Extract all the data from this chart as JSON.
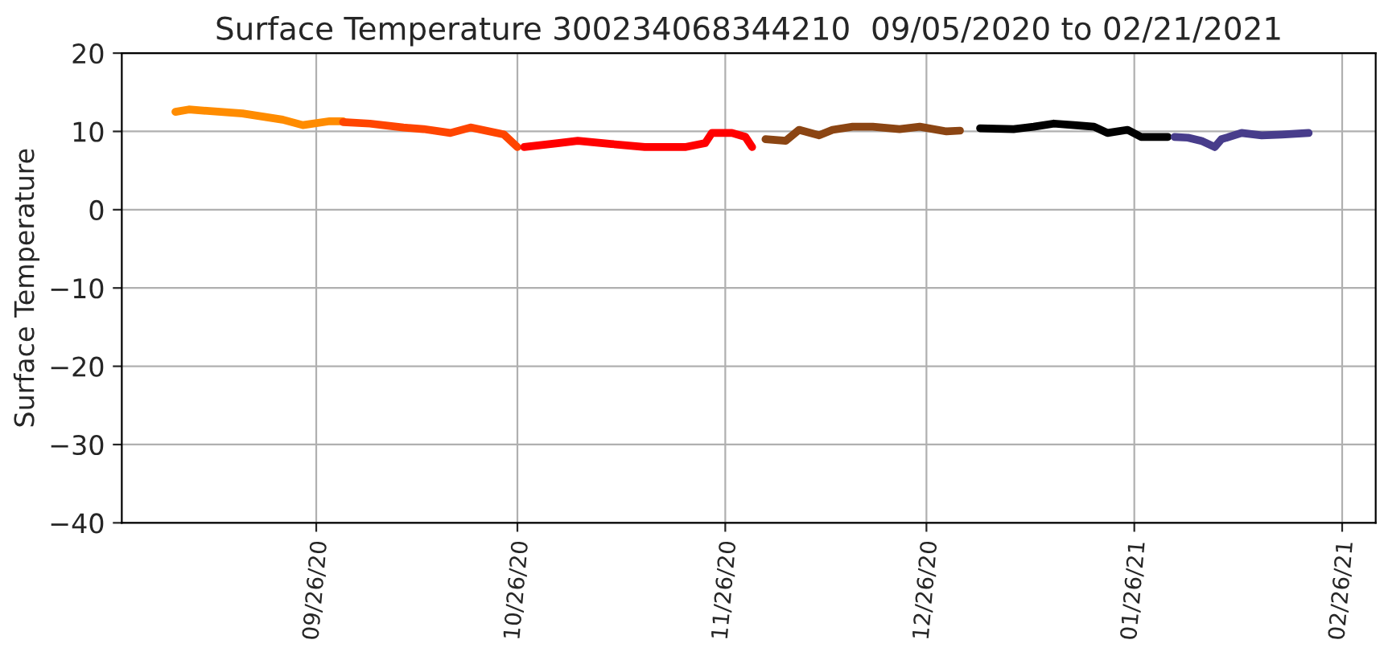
{
  "chart_data": {
    "type": "line",
    "title": "Surface Temperature 300234068344210  09/05/2020 to 02/21/2021",
    "ylabel": "Surface Temperature",
    "xlim": [
      "2020-08-28",
      "2021-03-03"
    ],
    "xticks": [
      {
        "value": "2020-09-26",
        "label": "09/26/20"
      },
      {
        "value": "2020-10-26",
        "label": "10/26/20"
      },
      {
        "value": "2020-11-26",
        "label": "11/26/20"
      },
      {
        "value": "2020-12-26",
        "label": "12/26/20"
      },
      {
        "value": "2021-01-26",
        "label": "01/26/21"
      },
      {
        "value": "2021-02-26",
        "label": "02/26/21"
      }
    ],
    "ylim": [
      -40,
      20
    ],
    "yticks": [
      {
        "value": -40,
        "label": "−40"
      },
      {
        "value": -30,
        "label": "−30"
      },
      {
        "value": -20,
        "label": "−20"
      },
      {
        "value": -10,
        "label": "−10"
      },
      0,
      10,
      20
    ],
    "grid": true,
    "marker": "none",
    "line_style": "solid",
    "series": [
      {
        "color": "#ff8c00",
        "x": [
          "2020-09-05",
          "2020-09-07",
          "2020-09-15",
          "2020-09-21",
          "2020-09-24",
          "2020-09-28",
          "2020-09-30"
        ],
        "values": [
          12.5,
          12.8,
          12.3,
          11.5,
          10.8,
          11.3,
          11.3
        ]
      },
      {
        "color": "#ff4500",
        "x": [
          "2020-09-30",
          "2020-10-04",
          "2020-10-09",
          "2020-10-12",
          "2020-10-16",
          "2020-10-19",
          "2020-10-24",
          "2020-10-26"
        ],
        "values": [
          11.2,
          11.0,
          10.5,
          10.3,
          9.8,
          10.5,
          9.6,
          8.0
        ]
      },
      {
        "color": "#ff0000",
        "x": [
          "2020-10-27",
          "2020-11-01",
          "2020-11-04",
          "2020-11-09",
          "2020-11-14",
          "2020-11-18",
          "2020-11-20",
          "2020-11-23",
          "2020-11-24",
          "2020-11-27",
          "2020-11-29",
          "2020-11-30"
        ],
        "values": [
          8.0,
          8.5,
          8.8,
          8.4,
          8.0,
          8.0,
          8.0,
          8.5,
          9.8,
          9.8,
          9.3,
          8.0
        ]
      },
      {
        "color": "#8b4513",
        "x": [
          "2020-12-02",
          "2020-12-05",
          "2020-12-07",
          "2020-12-10",
          "2020-12-12",
          "2020-12-15",
          "2020-12-18",
          "2020-12-22",
          "2020-12-25",
          "2020-12-29",
          "2020-12-31"
        ],
        "values": [
          9.0,
          8.8,
          10.2,
          9.5,
          10.2,
          10.6,
          10.6,
          10.3,
          10.6,
          10.0,
          10.1
        ]
      },
      {
        "color": "#000000",
        "x": [
          "2021-01-03",
          "2021-01-08",
          "2021-01-11",
          "2021-01-14",
          "2021-01-17",
          "2021-01-20",
          "2021-01-22",
          "2021-01-25",
          "2021-01-27",
          "2021-01-31"
        ],
        "values": [
          10.4,
          10.3,
          10.6,
          11.0,
          10.8,
          10.6,
          9.8,
          10.2,
          9.3,
          9.3
        ]
      },
      {
        "color": "#483d8b",
        "x": [
          "2021-02-01",
          "2021-02-03",
          "2021-02-05",
          "2021-02-07",
          "2021-02-08",
          "2021-02-11",
          "2021-02-14",
          "2021-02-17",
          "2021-02-21"
        ],
        "values": [
          9.3,
          9.2,
          8.8,
          8.0,
          9.0,
          9.8,
          9.5,
          9.6,
          9.8
        ]
      }
    ]
  }
}
